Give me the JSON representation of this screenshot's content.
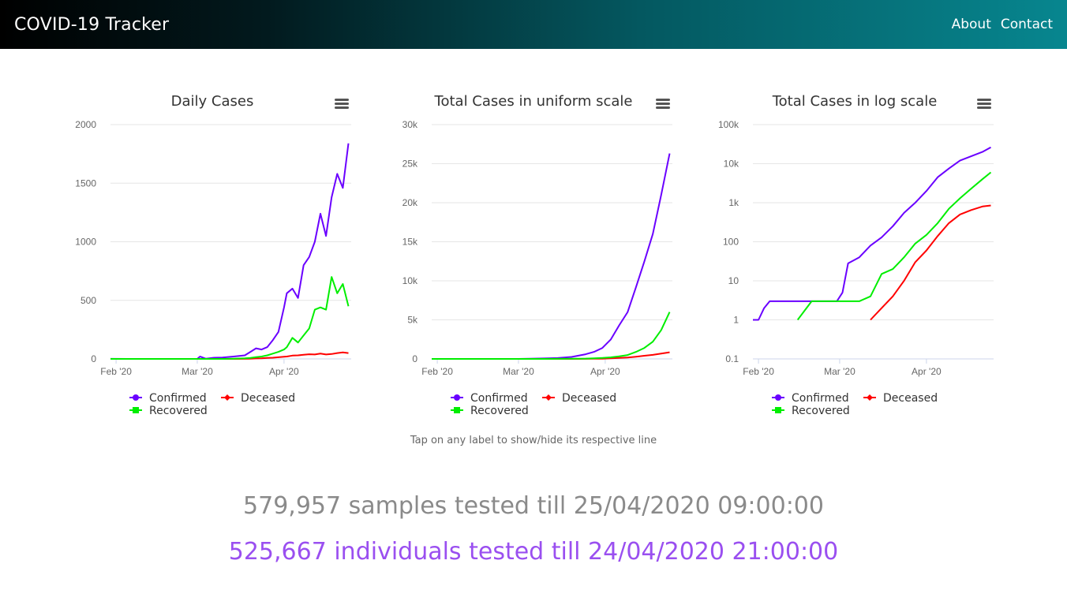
{
  "navbar": {
    "brand": "COVID-19 Tracker",
    "links": [
      "About",
      "Contact"
    ]
  },
  "colors": {
    "confirmed": "#6a00ff",
    "recovered": "#00ee00",
    "deceased": "#ff0000",
    "samples_text": "#8a8a8a",
    "individuals_text": "#9a4ff0"
  },
  "hint": "Tap on any label to show/hide its respective line",
  "stats": {
    "samples": "579,957 samples tested till 25/04/2020 09:00:00",
    "individuals": "525,667 individuals tested till 24/04/2020 21:00:00"
  },
  "legend": [
    "Confirmed",
    "Deceased",
    "Recovered"
  ],
  "chart_data": [
    {
      "type": "line",
      "title": "Daily Cases",
      "menu_icon": "hamburger-menu-icon",
      "x": [
        "2020-01-30",
        "2020-02-05",
        "2020-02-10",
        "2020-02-15",
        "2020-02-20",
        "2020-02-25",
        "2020-03-01",
        "2020-03-02",
        "2020-03-04",
        "2020-03-07",
        "2020-03-10",
        "2020-03-14",
        "2020-03-18",
        "2020-03-20",
        "2020-03-22",
        "2020-03-24",
        "2020-03-26",
        "2020-03-28",
        "2020-03-30",
        "2020-04-01",
        "2020-04-02",
        "2020-04-04",
        "2020-04-06",
        "2020-04-08",
        "2020-04-10",
        "2020-04-12",
        "2020-04-14",
        "2020-04-16",
        "2020-04-18",
        "2020-04-20",
        "2020-04-22",
        "2020-04-24"
      ],
      "x_tick_labels": [
        "Feb '20",
        "Mar '20",
        "Apr '20"
      ],
      "x_tick_dates": [
        "2020-02-01",
        "2020-03-01",
        "2020-04-01"
      ],
      "xlim": [
        "2020-01-30",
        "2020-04-25"
      ],
      "y_tick_labels": [
        "0",
        "500",
        "1000",
        "1500",
        "2000"
      ],
      "ylim": [
        0,
        2000
      ],
      "scale": "linear",
      "series": [
        {
          "name": "Confirmed",
          "values": [
            1,
            0,
            0,
            0,
            0,
            0,
            0,
            20,
            2,
            10,
            12,
            20,
            30,
            60,
            90,
            80,
            100,
            160,
            230,
            440,
            560,
            600,
            520,
            800,
            870,
            1000,
            1240,
            1050,
            1380,
            1580,
            1460,
            1840
          ]
        },
        {
          "name": "Deceased",
          "values": [
            0,
            0,
            0,
            0,
            0,
            0,
            0,
            0,
            0,
            0,
            0,
            0,
            1,
            2,
            4,
            5,
            8,
            10,
            14,
            18,
            20,
            28,
            30,
            35,
            40,
            38,
            45,
            38,
            42,
            50,
            55,
            50
          ]
        },
        {
          "name": "Recovered",
          "values": [
            0,
            0,
            0,
            0,
            0,
            0,
            0,
            0,
            0,
            0,
            0,
            2,
            5,
            8,
            15,
            20,
            30,
            45,
            60,
            80,
            100,
            180,
            140,
            200,
            260,
            420,
            440,
            420,
            700,
            560,
            640,
            450
          ]
        }
      ]
    },
    {
      "type": "line",
      "title": "Total Cases in uniform scale",
      "menu_icon": "hamburger-menu-icon",
      "x": [
        "2020-01-30",
        "2020-02-05",
        "2020-02-10",
        "2020-02-15",
        "2020-02-20",
        "2020-02-25",
        "2020-03-01",
        "2020-03-05",
        "2020-03-10",
        "2020-03-15",
        "2020-03-20",
        "2020-03-25",
        "2020-03-28",
        "2020-03-31",
        "2020-04-03",
        "2020-04-06",
        "2020-04-09",
        "2020-04-12",
        "2020-04-15",
        "2020-04-18",
        "2020-04-21",
        "2020-04-24"
      ],
      "x_tick_labels": [
        "Feb '20",
        "Mar '20",
        "Apr '20"
      ],
      "x_tick_dates": [
        "2020-02-01",
        "2020-03-01",
        "2020-04-01"
      ],
      "xlim": [
        "2020-01-30",
        "2020-04-25"
      ],
      "y_tick_labels": [
        "0",
        "5k",
        "10k",
        "15k",
        "20k",
        "25k",
        "30k"
      ],
      "ylim": [
        0,
        30000
      ],
      "scale": "linear",
      "series": [
        {
          "name": "Confirmed",
          "values": [
            1,
            3,
            3,
            3,
            3,
            3,
            3,
            30,
            60,
            110,
            250,
            600,
            900,
            1400,
            2500,
            4300,
            6000,
            9200,
            12500,
            16000,
            21000,
            26300
          ]
        },
        {
          "name": "Deceased",
          "values": [
            0,
            0,
            0,
            0,
            0,
            0,
            0,
            0,
            0,
            2,
            5,
            12,
            20,
            35,
            70,
            120,
            180,
            280,
            400,
            520,
            680,
            850
          ]
        },
        {
          "name": "Recovered",
          "values": [
            0,
            0,
            0,
            0,
            0,
            0,
            3,
            3,
            4,
            10,
            25,
            45,
            80,
            120,
            200,
            320,
            500,
            900,
            1400,
            2200,
            3700,
            6000
          ]
        }
      ]
    },
    {
      "type": "line",
      "title": "Total Cases in log scale",
      "menu_icon": "hamburger-menu-icon",
      "x": [
        "2020-01-30",
        "2020-02-01",
        "2020-02-03",
        "2020-02-05",
        "2020-02-10",
        "2020-02-15",
        "2020-02-20",
        "2020-02-25",
        "2020-02-29",
        "2020-03-02",
        "2020-03-04",
        "2020-03-08",
        "2020-03-12",
        "2020-03-16",
        "2020-03-20",
        "2020-03-24",
        "2020-03-28",
        "2020-04-01",
        "2020-04-05",
        "2020-04-09",
        "2020-04-13",
        "2020-04-17",
        "2020-04-21",
        "2020-04-24"
      ],
      "x_tick_labels": [
        "Feb '20",
        "Mar '20",
        "Apr '20"
      ],
      "x_tick_dates": [
        "2020-02-01",
        "2020-03-01",
        "2020-04-01"
      ],
      "xlim": [
        "2020-01-30",
        "2020-04-25"
      ],
      "y_tick_labels": [
        "0.1",
        "1",
        "10",
        "100",
        "1k",
        "10k",
        "100k"
      ],
      "ylim": [
        0.1,
        100000
      ],
      "scale": "log",
      "series": [
        {
          "name": "Confirmed",
          "values": [
            1,
            1,
            2,
            3,
            3,
            3,
            3,
            3,
            3,
            5,
            28,
            40,
            80,
            130,
            250,
            550,
            1000,
            2000,
            4500,
            7500,
            12000,
            15500,
            20000,
            26300
          ]
        },
        {
          "name": "Deceased",
          "values": [
            null,
            null,
            null,
            null,
            null,
            null,
            null,
            null,
            null,
            null,
            null,
            null,
            1,
            2,
            4,
            10,
            30,
            60,
            140,
            300,
            500,
            650,
            800,
            850
          ]
        },
        {
          "name": "Recovered",
          "values": [
            null,
            null,
            null,
            null,
            null,
            1,
            3,
            3,
            3,
            3,
            3,
            3,
            4,
            15,
            20,
            40,
            90,
            150,
            300,
            700,
            1300,
            2300,
            4000,
            6000
          ]
        }
      ]
    }
  ]
}
